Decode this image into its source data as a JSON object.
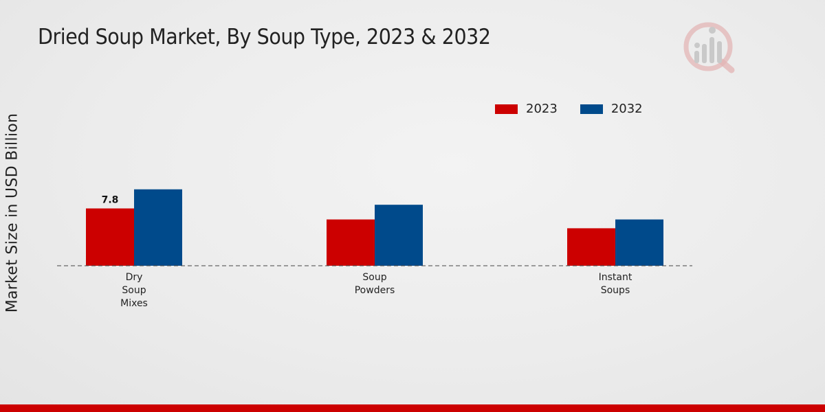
{
  "colors": {
    "series_2023": "#cc0000",
    "series_2032": "#004a8b",
    "bottom_bar": "#cc0000"
  },
  "logo": {
    "icon": "market-research-logo-icon"
  },
  "chart_data": {
    "type": "bar",
    "title": "Dried Soup Market, By Soup Type, 2023 & 2032",
    "xlabel": "",
    "ylabel": "Market Size in USD Billion",
    "categories": [
      "Dry\nSoup\nMixes",
      "Soup\nPowders",
      "Instant\nSoups"
    ],
    "series": [
      {
        "name": "2023",
        "values": [
          7.8,
          6.3,
          5.1
        ]
      },
      {
        "name": "2032",
        "values": [
          10.4,
          8.3,
          6.3
        ]
      }
    ],
    "data_labels": [
      {
        "series": 0,
        "category": 0,
        "text": "7.8"
      }
    ],
    "ylim": [
      0,
      20
    ],
    "grid": false,
    "legend_position": "top-right"
  }
}
